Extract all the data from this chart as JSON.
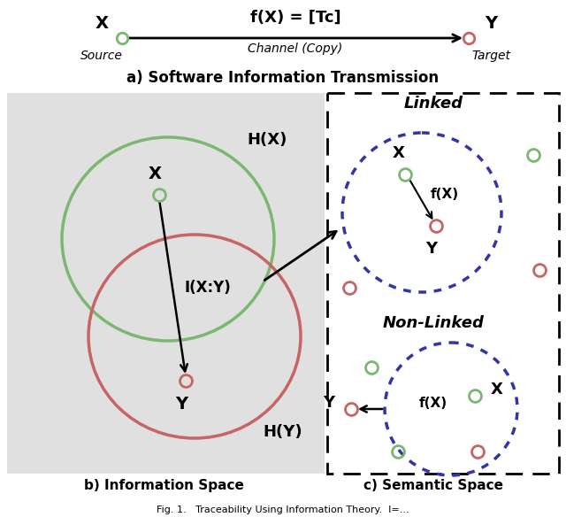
{
  "green_color": "#7ab870",
  "red_color": "#c86464",
  "purple_dotted_color": "#3333aa",
  "bg_gray": "#e0e0e0",
  "title_a": "a) Software Information Transmission",
  "title_b": "b) Information Space",
  "title_c": "c) Semantic Space"
}
